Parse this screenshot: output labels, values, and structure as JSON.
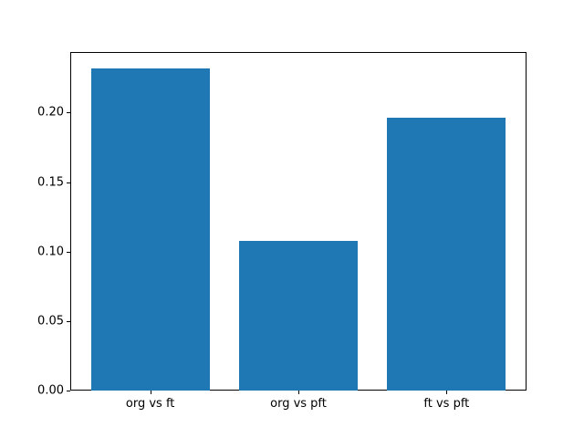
{
  "chart_data": {
    "type": "bar",
    "categories": [
      "org vs ft",
      "org vs pft",
      "ft vs pft"
    ],
    "values": [
      0.232,
      0.108,
      0.196
    ],
    "title": "",
    "xlabel": "",
    "ylabel": "",
    "xlim": [
      -0.54,
      2.54
    ],
    "ylim": [
      0,
      0.2436
    ],
    "yticks": [
      {
        "value": 0.0,
        "label": "0.00"
      },
      {
        "value": 0.05,
        "label": "0.05"
      },
      {
        "value": 0.1,
        "label": "0.10"
      },
      {
        "value": 0.15,
        "label": "0.15"
      },
      {
        "value": 0.2,
        "label": "0.20"
      }
    ],
    "bar_width": 0.8,
    "bar_color": "#1f77b4",
    "grid": false,
    "legend": null
  }
}
